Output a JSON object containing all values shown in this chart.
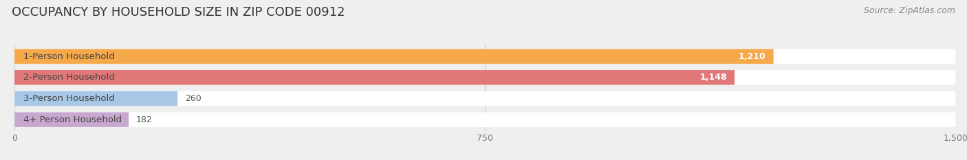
{
  "title": "OCCUPANCY BY HOUSEHOLD SIZE IN ZIP CODE 00912",
  "source": "Source: ZipAtlas.com",
  "categories": [
    "1-Person Household",
    "2-Person Household",
    "3-Person Household",
    "4+ Person Household"
  ],
  "values": [
    1210,
    1148,
    260,
    182
  ],
  "bar_colors": [
    "#F5A94A",
    "#E07878",
    "#A8C8E8",
    "#C8A8D0"
  ],
  "xlim": [
    0,
    1500
  ],
  "xticks": [
    0,
    750,
    1500
  ],
  "background_color": "#EFEFEF",
  "title_fontsize": 13,
  "source_fontsize": 9,
  "label_fontsize": 9.5,
  "value_fontsize": 9
}
